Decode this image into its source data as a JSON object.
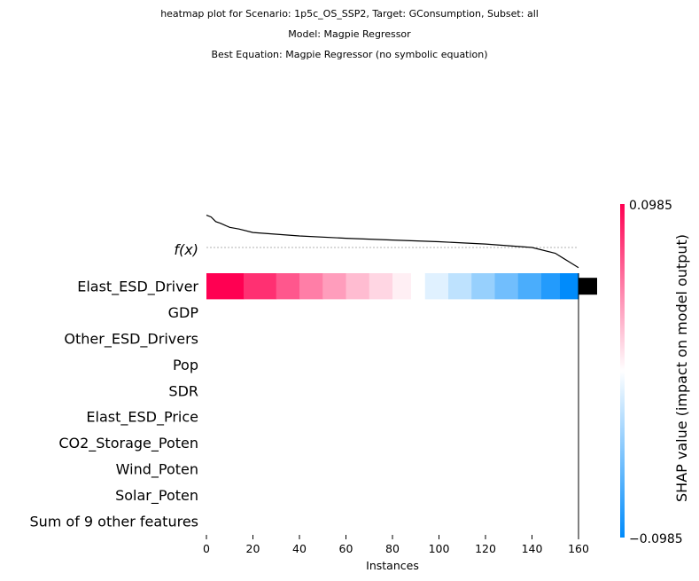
{
  "title_lines": [
    "heatmap plot for Scenario: 1p5c_OS_SSP2, Target: GConsumption, Subset: all",
    "Model: Magpie Regressor",
    "Best Equation: Magpie Regressor (no symbolic equation)"
  ],
  "chart_data": {
    "type": "heatmap",
    "xlabel": "Instances",
    "x_ticks": [
      0,
      20,
      40,
      60,
      80,
      100,
      120,
      140,
      160
    ],
    "xlim": [
      0,
      160
    ],
    "n_instances": 160,
    "fx_label": "f(x)",
    "features": [
      "Elast_ESD_Driver",
      "GDP",
      "Other_ESD_Drivers",
      "Pop",
      "SDR",
      "Elast_ESD_Price",
      "CO2_Storage_Poten",
      "Wind_Poten",
      "Solar_Poten",
      "Sum of 9 other features"
    ],
    "shap_rows": {
      "Elast_ESD_Driver": {
        "segments": [
          {
            "x": [
              0,
              16
            ],
            "value": 0.0985
          },
          {
            "x": [
              16,
              30
            ],
            "value": 0.08
          },
          {
            "x": [
              30,
              40
            ],
            "value": 0.065
          },
          {
            "x": [
              40,
              50
            ],
            "value": 0.05
          },
          {
            "x": [
              50,
              60
            ],
            "value": 0.038
          },
          {
            "x": [
              60,
              70
            ],
            "value": 0.026
          },
          {
            "x": [
              70,
              80
            ],
            "value": 0.016
          },
          {
            "x": [
              80,
              88
            ],
            "value": 0.006
          },
          {
            "x": [
              88,
              94
            ],
            "value": 0.0
          },
          {
            "x": [
              94,
              104
            ],
            "value": -0.012
          },
          {
            "x": [
              104,
              114
            ],
            "value": -0.025
          },
          {
            "x": [
              114,
              124
            ],
            "value": -0.04
          },
          {
            "x": [
              124,
              134
            ],
            "value": -0.055
          },
          {
            "x": [
              134,
              144
            ],
            "value": -0.07
          },
          {
            "x": [
              144,
              152
            ],
            "value": -0.085
          },
          {
            "x": [
              152,
              160
            ],
            "value": -0.0985
          }
        ]
      },
      "others": 0
    },
    "fx_curve": [
      [
        0,
        0.96
      ],
      [
        2,
        0.93
      ],
      [
        4,
        0.85
      ],
      [
        6,
        0.82
      ],
      [
        10,
        0.75
      ],
      [
        14,
        0.72
      ],
      [
        20,
        0.66
      ],
      [
        40,
        0.6
      ],
      [
        60,
        0.56
      ],
      [
        80,
        0.53
      ],
      [
        100,
        0.5
      ],
      [
        120,
        0.46
      ],
      [
        140,
        0.4
      ],
      [
        150,
        0.3
      ],
      [
        156,
        0.15
      ],
      [
        160,
        0.05
      ]
    ],
    "importance_bars": {
      "Elast_ESD_Driver": 1.0
    },
    "colorbar": {
      "label": "SHAP value (impact on model output)",
      "max_label": "0.0985",
      "min_label": "−0.0985",
      "min": -0.0985,
      "max": 0.0985,
      "colors": {
        "high": "#ff0052",
        "mid": "#ffffff",
        "low": "#008bfb"
      }
    }
  }
}
